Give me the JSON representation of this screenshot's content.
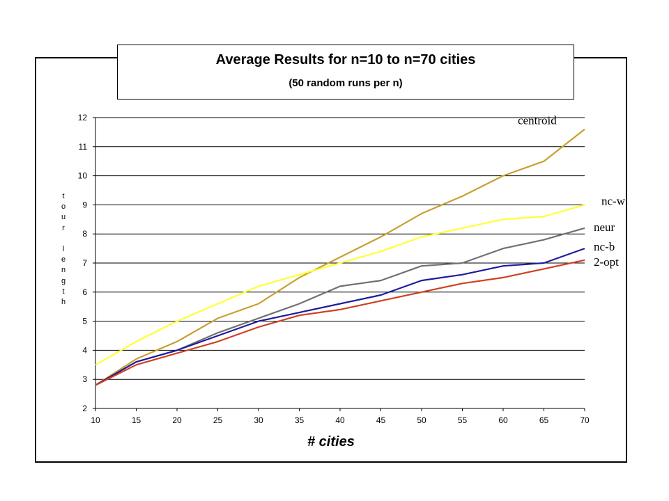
{
  "chart_data": {
    "type": "line",
    "title": "Average Results for n=10 to n=70 cities",
    "subtitle": "(50 random runs per n)",
    "xlabel": "# cities",
    "ylabel": "tour length",
    "xlim": [
      10,
      70
    ],
    "ylim": [
      2,
      12
    ],
    "xticks": [
      10,
      15,
      20,
      25,
      30,
      35,
      40,
      45,
      50,
      55,
      60,
      65,
      70
    ],
    "yticks": [
      2,
      3,
      4,
      5,
      6,
      7,
      8,
      9,
      10,
      11,
      12
    ],
    "grid": "horizontal",
    "x": [
      10,
      15,
      20,
      25,
      30,
      35,
      40,
      45,
      50,
      55,
      60,
      65,
      70
    ],
    "series": [
      {
        "name": "centroid",
        "color": "#c8a030",
        "values": [
          2.8,
          3.7,
          4.3,
          5.1,
          5.6,
          6.5,
          7.2,
          7.9,
          8.7,
          9.3,
          10.0,
          10.5,
          11.6
        ]
      },
      {
        "name": "nc-w",
        "color": "#ffff33",
        "values": [
          3.5,
          4.3,
          5.0,
          5.6,
          6.2,
          6.6,
          7.0,
          7.4,
          7.9,
          8.2,
          8.5,
          8.6,
          9.0
        ]
      },
      {
        "name": "neur",
        "color": "#707070",
        "values": [
          2.8,
          3.6,
          4.0,
          4.6,
          5.1,
          5.6,
          6.2,
          6.4,
          6.9,
          7.0,
          7.5,
          7.8,
          8.2
        ]
      },
      {
        "name": "nc-b",
        "color": "#1c1ca0",
        "values": [
          2.8,
          3.6,
          4.0,
          4.5,
          5.0,
          5.3,
          5.6,
          5.9,
          6.4,
          6.6,
          6.9,
          7.0,
          7.5
        ]
      },
      {
        "name": "2-opt",
        "color": "#d04020",
        "values": [
          2.8,
          3.5,
          3.9,
          4.3,
          4.8,
          5.2,
          5.4,
          5.7,
          6.0,
          6.3,
          6.5,
          6.8,
          7.1
        ]
      }
    ]
  }
}
